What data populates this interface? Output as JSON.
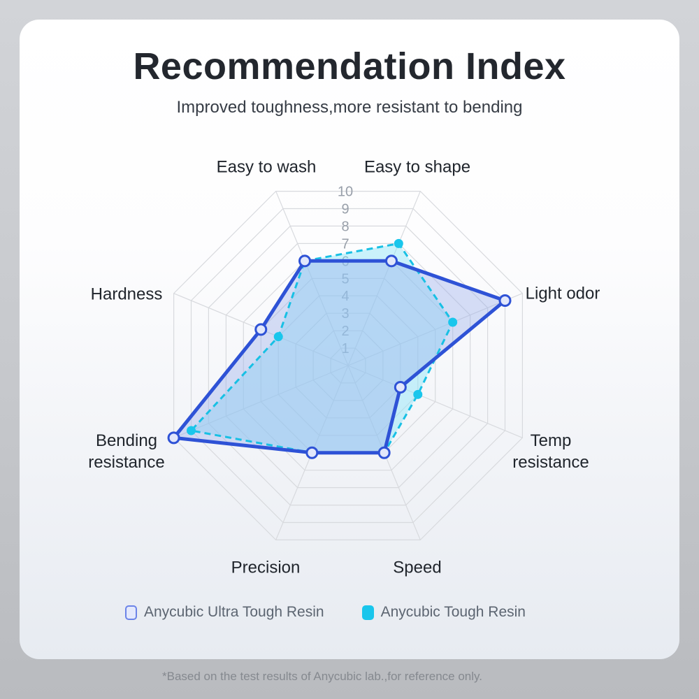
{
  "header": {
    "title": "Recommendation Index",
    "subtitle": "Improved toughness,more resistant to bending"
  },
  "chart_data": {
    "type": "radar",
    "categories": [
      "Easy to wash",
      "Easy to shape",
      "Light odor",
      "Temp resistance",
      "Speed",
      "Precision",
      "Bending resistance",
      "Hardness"
    ],
    "series": [
      {
        "name": "Anycubic Ultra Tough Resin",
        "values": [
          6,
          6,
          9,
          3,
          5,
          5,
          10,
          5
        ],
        "line_color": "#2e52d6",
        "fill_color": "rgba(150,170,235,0.38)",
        "marker_fill": "#e2e7fb",
        "line_style": "solid"
      },
      {
        "name": "Anycubic Tough Resin",
        "values": [
          6,
          7,
          6,
          4,
          5,
          5,
          9,
          4
        ],
        "line_color": "#18c0e4",
        "fill_color": "rgba(140,228,248,0.45)",
        "marker_fill": "#19c6ec",
        "line_style": "dashed"
      }
    ],
    "scale": {
      "min": 0,
      "max": 10,
      "ticks": [
        1,
        2,
        3,
        4,
        5,
        6,
        7,
        8,
        9,
        10
      ]
    },
    "layout": {
      "sides": 8,
      "start_angle_deg": 112.5,
      "grid": "web-octagon",
      "grid_color": "#d8dade",
      "legend_position": "bottom"
    }
  },
  "legend": {
    "items": [
      {
        "label": "Anycubic Ultra Tough Resin",
        "swatch_color": "#e4e9fc",
        "swatch_border": "#6c84e8"
      },
      {
        "label": "Anycubic Tough Resin",
        "swatch_color": "#19c6ec"
      }
    ]
  },
  "footer": {
    "note": "*Based on the test results of Anycubic lab.,for reference only."
  }
}
